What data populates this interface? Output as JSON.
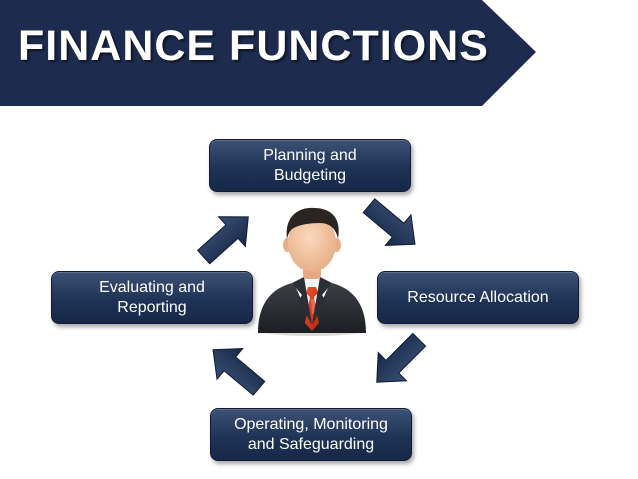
{
  "slide": {
    "title": "FINANCE FUNCTIONS"
  },
  "colors": {
    "banner": "#1d2c4e",
    "box": "#253a5e",
    "arrow": "#223559",
    "tie": "#d93a1c"
  },
  "cycle": {
    "steps": [
      {
        "label": "Planning and\nBudgeting"
      },
      {
        "label": "Resource Allocation"
      },
      {
        "label": "Operating, Monitoring\nand Safeguarding"
      },
      {
        "label": "Evaluating and\nReporting"
      }
    ]
  },
  "icons": {
    "center": "businessman-icon",
    "arrows": "arrow-icon"
  }
}
